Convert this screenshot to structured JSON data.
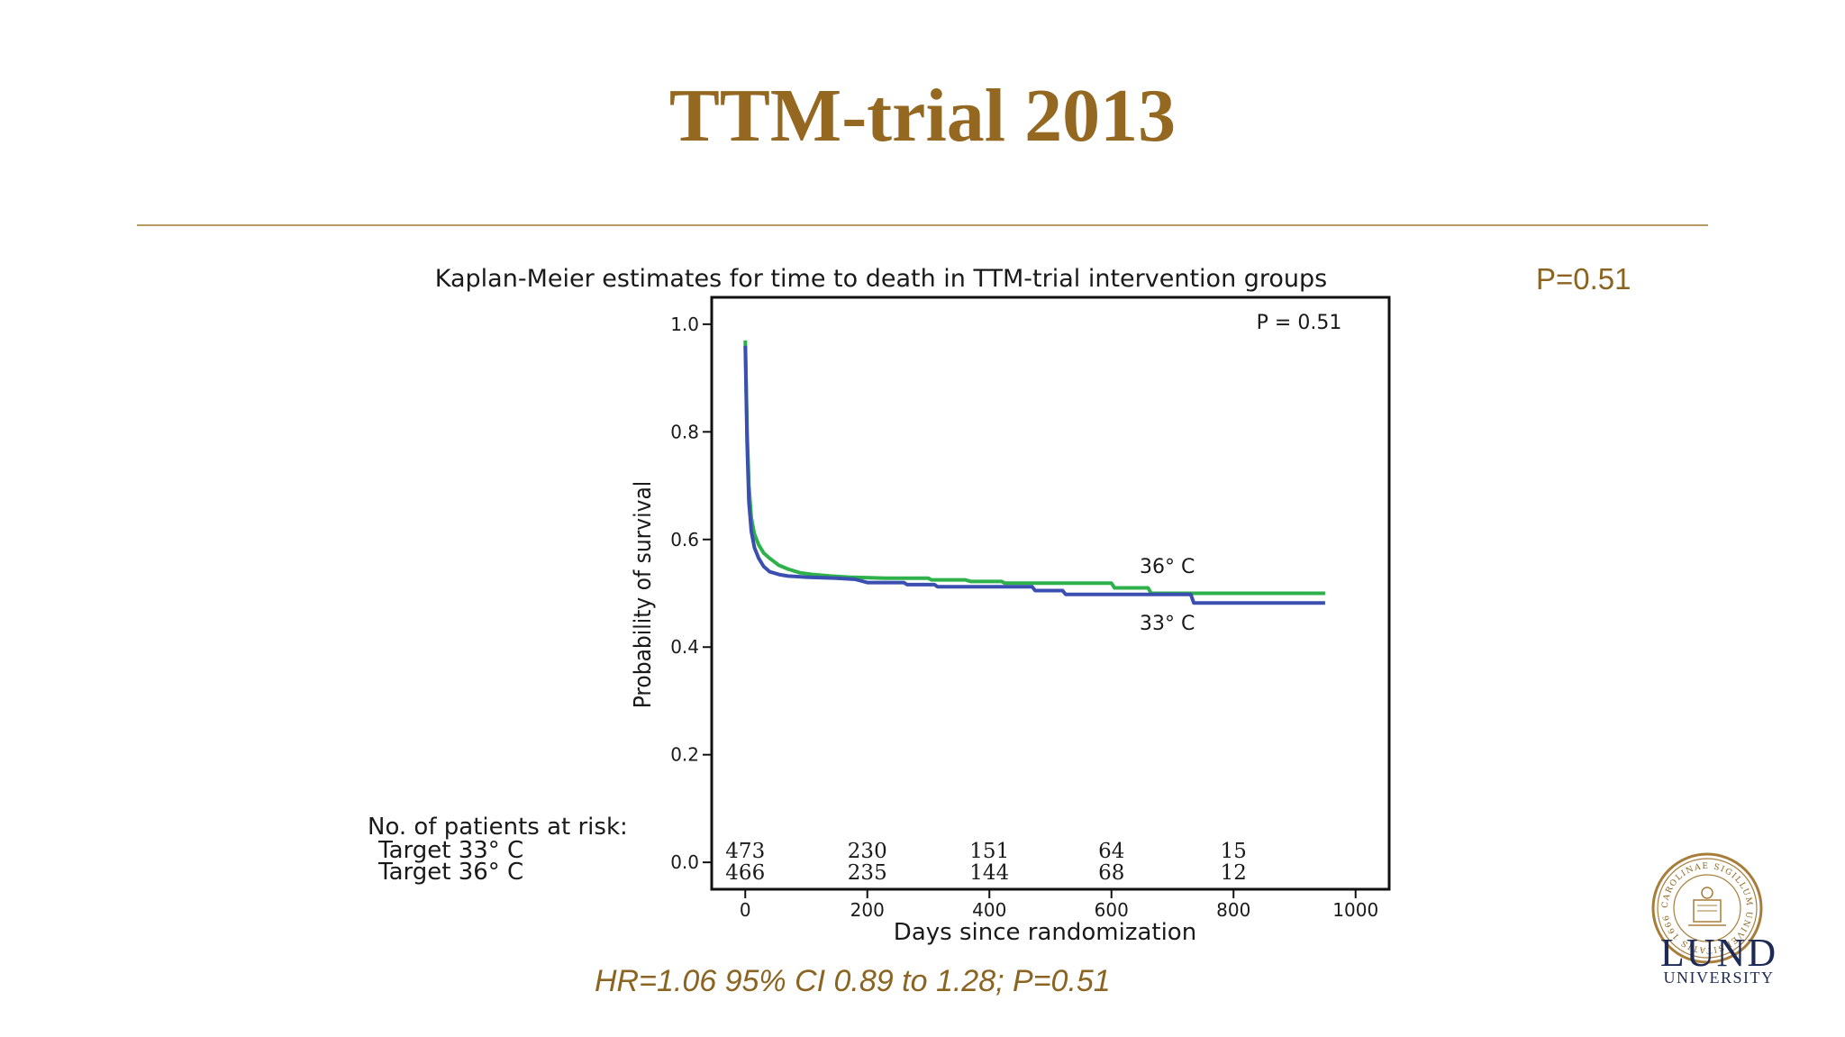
{
  "slide": {
    "title": "TTM-trial 2013",
    "p_value_label": "P=0.51",
    "hr_text": "HR=1.06 95% CI 0.89 to 1.28; P=0.51",
    "logo": {
      "word": "LUND",
      "subword": "UNIVERSITY",
      "seal_text": "CAROLINAE SIGILLUM UNIVERSITATIS 1666"
    }
  },
  "colors": {
    "title": "#946821",
    "green": "#2eb14b",
    "blue": "#3b4fb0",
    "accent": "#8a6420"
  },
  "chart_data": {
    "type": "line",
    "title": "Kaplan-Meier estimates for time to death in TTM-trial intervention groups",
    "xlabel": "Days since randomization",
    "ylabel": "Probability of survival",
    "xlim": [
      -55,
      1055
    ],
    "ylim": [
      -0.05,
      1.05
    ],
    "x_ticks": [
      0,
      200,
      400,
      600,
      800,
      1000
    ],
    "y_ticks": [
      0.0,
      0.2,
      0.4,
      0.6,
      0.8,
      1.0
    ],
    "x_tick_labels": [
      "0",
      "200",
      "400",
      "600",
      "800",
      "1000"
    ],
    "y_tick_labels": [
      "0.0",
      "0.2",
      "0.4",
      "0.6",
      "0.8",
      "1.0"
    ],
    "annotation": "P = 0.51",
    "series": [
      {
        "name": "36° C",
        "color": "#2eb14b",
        "points": [
          [
            0,
            0.97
          ],
          [
            3,
            0.8
          ],
          [
            6,
            0.7
          ],
          [
            10,
            0.64
          ],
          [
            15,
            0.61
          ],
          [
            22,
            0.59
          ],
          [
            30,
            0.575
          ],
          [
            40,
            0.565
          ],
          [
            55,
            0.552
          ],
          [
            70,
            0.545
          ],
          [
            90,
            0.538
          ],
          [
            110,
            0.535
          ],
          [
            140,
            0.532
          ],
          [
            170,
            0.53
          ],
          [
            230,
            0.528
          ],
          [
            300,
            0.528
          ],
          [
            305,
            0.525
          ],
          [
            360,
            0.525
          ],
          [
            370,
            0.522
          ],
          [
            420,
            0.522
          ],
          [
            425,
            0.519
          ],
          [
            600,
            0.519
          ],
          [
            605,
            0.51
          ],
          [
            660,
            0.51
          ],
          [
            665,
            0.5
          ],
          [
            950,
            0.5
          ]
        ]
      },
      {
        "name": "33° C",
        "color": "#3b4fb0",
        "points": [
          [
            0,
            0.96
          ],
          [
            3,
            0.78
          ],
          [
            6,
            0.67
          ],
          [
            10,
            0.615
          ],
          [
            15,
            0.585
          ],
          [
            22,
            0.565
          ],
          [
            30,
            0.55
          ],
          [
            40,
            0.54
          ],
          [
            55,
            0.535
          ],
          [
            70,
            0.532
          ],
          [
            100,
            0.53
          ],
          [
            150,
            0.528
          ],
          [
            180,
            0.526
          ],
          [
            200,
            0.52
          ],
          [
            260,
            0.52
          ],
          [
            265,
            0.516
          ],
          [
            310,
            0.516
          ],
          [
            315,
            0.512
          ],
          [
            470,
            0.512
          ],
          [
            475,
            0.505
          ],
          [
            520,
            0.505
          ],
          [
            525,
            0.498
          ],
          [
            700,
            0.498
          ],
          [
            730,
            0.498
          ],
          [
            735,
            0.482
          ],
          [
            950,
            0.482
          ]
        ]
      }
    ],
    "series_labels": [
      "36° C",
      "33° C"
    ],
    "at_risk": {
      "heading": "No. of patients at risk:",
      "rows": [
        {
          "label": "Target 33° C",
          "values": [
            "473",
            "230",
            "151",
            "64",
            "15"
          ]
        },
        {
          "label": "Target 36° C",
          "values": [
            "466",
            "235",
            "144",
            "68",
            "12"
          ]
        }
      ],
      "times": [
        0,
        200,
        400,
        600,
        800
      ]
    }
  }
}
